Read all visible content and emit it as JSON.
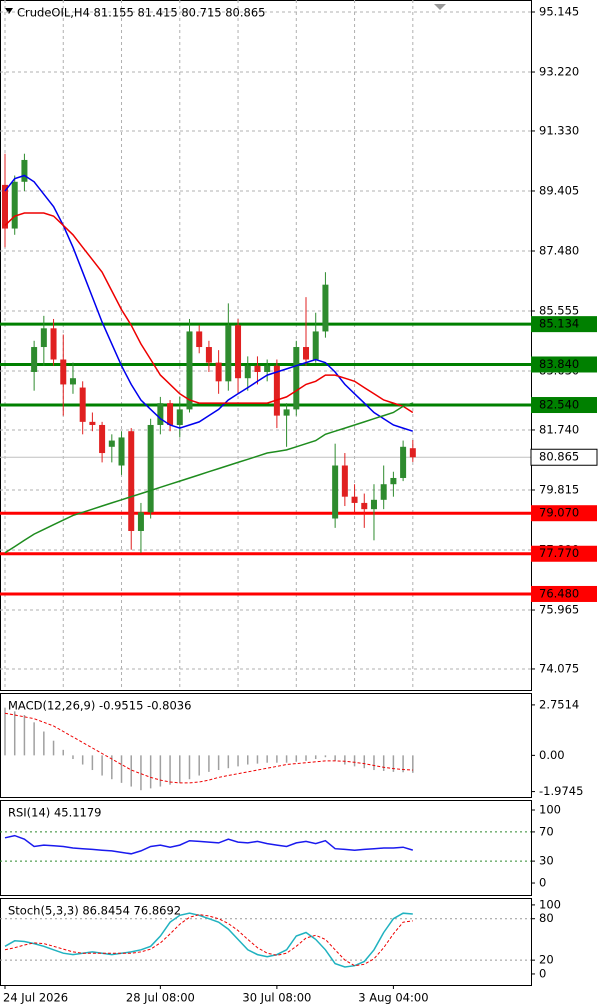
{
  "chart_data": [
    {
      "type": "candlestick",
      "title": "CrudeOIL,H4  81.155 81.415 80.715 80.865",
      "ylim": [
        73.4,
        95.53
      ],
      "yticks": [
        95.145,
        {
          "value": 93.22,
          "label": "93.220"
        },
        {
          "value": 91.33,
          "label": "91.330"
        },
        89.405,
        {
          "value": 87.48,
          "label": "87.480"
        },
        85.555,
        {
          "value": 83.63,
          "label": "83.630"
        },
        {
          "value": 81.74,
          "label": "81.740"
        },
        79.815,
        {
          "value": 77.89,
          "label": "77.890"
        },
        75.965,
        74.075
      ],
      "grid": true,
      "up_color": "#2e8b2e",
      "down_color": "#e02020",
      "open": [
        89.6,
        88.2,
        89.7,
        83.6,
        84.4,
        85.0,
        84.0,
        83.2,
        83.1,
        82.0,
        81.9,
        81.2,
        80.6,
        81.7,
        78.5,
        79.1,
        81.9,
        82.6,
        81.9,
        82.4,
        84.9,
        84.4,
        83.9,
        83.3,
        85.1,
        83.4,
        83.8,
        83.6,
        83.8,
        82.2,
        82.4,
        84.4,
        84.0,
        84.9,
        78.9,
        80.6,
        79.6,
        79.4,
        79.2,
        79.5,
        80.0,
        80.2,
        81.155
      ],
      "high": [
        90.6,
        89.9,
        90.6,
        84.6,
        85.4,
        85.3,
        84.8,
        83.9,
        83.3,
        82.3,
        82.0,
        81.6,
        81.7,
        81.8,
        79.4,
        82.1,
        82.8,
        82.7,
        82.8,
        85.3,
        85.1,
        84.6,
        84.3,
        85.8,
        85.3,
        84.1,
        84.1,
        84.0,
        84.0,
        82.6,
        84.6,
        86.0,
        85.5,
        86.8,
        81.3,
        81.0,
        80.0,
        79.7,
        80.0,
        80.6,
        80.4,
        81.4,
        81.415
      ],
      "low": [
        87.6,
        88.0,
        89.4,
        83.0,
        83.8,
        83.8,
        82.2,
        82.9,
        81.6,
        81.7,
        80.7,
        80.7,
        80.3,
        77.9,
        77.8,
        78.9,
        81.6,
        81.7,
        81.5,
        82.3,
        84.2,
        83.6,
        82.9,
        83.0,
        82.9,
        83.0,
        83.2,
        83.3,
        81.8,
        81.2,
        82.2,
        83.8,
        83.9,
        84.7,
        78.6,
        79.3,
        79.1,
        78.6,
        78.2,
        79.2,
        79.6,
        80.1,
        80.715
      ],
      "close": [
        88.2,
        89.7,
        90.4,
        84.4,
        85.0,
        84.0,
        83.2,
        83.4,
        82.0,
        81.9,
        81.0,
        81.4,
        81.5,
        78.5,
        79.1,
        81.9,
        82.6,
        81.9,
        82.4,
        84.9,
        84.4,
        83.9,
        83.3,
        85.1,
        83.4,
        83.8,
        83.6,
        83.8,
        82.2,
        82.4,
        84.4,
        84.0,
        84.9,
        86.4,
        80.6,
        79.6,
        79.4,
        79.2,
        79.5,
        80.0,
        80.2,
        81.2,
        80.865
      ],
      "series": [
        {
          "color": "#0000ee",
          "values": [
            89.4,
            89.8,
            89.9,
            89.7,
            89.3,
            88.9,
            88.3,
            87.6,
            86.8,
            86.0,
            85.2,
            84.5,
            83.8,
            83.2,
            82.7,
            82.4,
            82.1,
            81.9,
            81.8,
            81.9,
            82.0,
            82.2,
            82.4,
            82.7,
            82.9,
            83.1,
            83.3,
            83.5,
            83.6,
            83.7,
            83.8,
            83.9,
            84.0,
            83.9,
            83.6,
            83.2,
            82.9,
            82.6,
            82.3,
            82.1,
            81.9,
            81.8,
            81.7
          ]
        },
        {
          "color": "#ee0000",
          "values": [
            88.3,
            88.6,
            88.7,
            88.7,
            88.7,
            88.6,
            88.3,
            88.0,
            87.6,
            87.2,
            86.8,
            86.2,
            85.6,
            85.1,
            84.5,
            84.0,
            83.5,
            83.2,
            82.9,
            82.7,
            82.6,
            82.6,
            82.6,
            82.6,
            82.6,
            82.6,
            82.6,
            82.6,
            82.7,
            82.8,
            83.0,
            83.2,
            83.3,
            83.5,
            83.5,
            83.4,
            83.3,
            83.1,
            82.9,
            82.7,
            82.6,
            82.5,
            82.3
          ]
        },
        {
          "color": "#1e8c1e",
          "values": [
            77.8,
            78.0,
            78.2,
            78.4,
            78.55,
            78.7,
            78.85,
            79.0,
            79.1,
            79.2,
            79.3,
            79.4,
            79.5,
            79.6,
            79.7,
            79.8,
            79.9,
            80.0,
            80.1,
            80.2,
            80.3,
            80.4,
            80.5,
            80.6,
            80.7,
            80.8,
            80.9,
            81.0,
            81.05,
            81.1,
            81.2,
            81.3,
            81.4,
            81.6,
            81.7,
            81.8,
            81.9,
            82.0,
            82.1,
            82.2,
            82.3,
            82.5,
            82.6
          ]
        }
      ],
      "levels": [
        {
          "value": 85.134,
          "color": "#008000"
        },
        {
          "value": 83.84,
          "label": "83.840",
          "color": "#008000"
        },
        {
          "value": 82.54,
          "label": "82.540",
          "color": "#008000"
        },
        {
          "value": 79.07,
          "label": "79.070",
          "color": "#ff0000"
        },
        {
          "value": 77.77,
          "label": "77.770",
          "color": "#ff0000"
        },
        {
          "value": 76.48,
          "label": "76.480",
          "color": "#ff0000"
        }
      ],
      "level_labels": true,
      "last_price_line": true
    },
    {
      "type": "line",
      "title": "MACD(12,26,9) -0.9515 -0.8036",
      "ylim": [
        -2.27,
        3.4
      ],
      "yticks": [
        2.7514,
        {
          "value": 0,
          "label": "0.00"
        },
        -1.9745
      ],
      "grid": false,
      "series": [
        {
          "kind": "bar",
          "color": "#a0a0a0",
          "values": [
            2.6,
            2.4,
            2.2,
            1.8,
            1.3,
            0.8,
            0.3,
            -0.2,
            -0.5,
            -0.8,
            -1.1,
            -1.3,
            -1.5,
            -1.7,
            -1.9,
            -1.8,
            -1.7,
            -1.6,
            -1.5,
            -1.3,
            -1.1,
            -0.9,
            -0.8,
            -0.7,
            -0.6,
            -0.5,
            -0.45,
            -0.4,
            -0.4,
            -0.4,
            -0.35,
            -0.3,
            -0.2,
            -0.1,
            -0.3,
            -0.5,
            -0.6,
            -0.7,
            -0.8,
            -0.85,
            -0.9,
            -0.92,
            -0.9515
          ]
        },
        {
          "color": "#ee0000",
          "dash": true,
          "values": [
            2.3,
            2.2,
            2.1,
            2.0,
            1.8,
            1.6,
            1.3,
            1.0,
            0.7,
            0.4,
            0.1,
            -0.2,
            -0.5,
            -0.8,
            -1.0,
            -1.2,
            -1.35,
            -1.45,
            -1.5,
            -1.5,
            -1.45,
            -1.35,
            -1.2,
            -1.1,
            -1.0,
            -0.9,
            -0.8,
            -0.7,
            -0.6,
            -0.5,
            -0.45,
            -0.4,
            -0.35,
            -0.3,
            -0.3,
            -0.32,
            -0.38,
            -0.45,
            -0.55,
            -0.65,
            -0.72,
            -0.77,
            -0.8036
          ]
        }
      ]
    },
    {
      "type": "line",
      "title": "RSI(14) 45.1179",
      "ylim": [
        -16.4,
        113.7
      ],
      "yticks": [
        100,
        70,
        30,
        0
      ],
      "grid": false,
      "levels": [
        {
          "value": 70,
          "color": "#2e8b2e",
          "dash": true
        },
        {
          "value": 30,
          "color": "#2e8b2e",
          "dash": true
        }
      ],
      "series": [
        {
          "color": "#1a1aee",
          "values": [
            62,
            65,
            60,
            50,
            52,
            51,
            50,
            48,
            47,
            46,
            45,
            44,
            42,
            40,
            44,
            50,
            52,
            49,
            52,
            58,
            57,
            56,
            55,
            60,
            56,
            55,
            57,
            54,
            52,
            50,
            55,
            57,
            54,
            58,
            47,
            46,
            45,
            46,
            47,
            48,
            48,
            49,
            45.1179
          ]
        }
      ]
    },
    {
      "type": "line",
      "title": "Stoch(5,3,3) 86.8454 76.8692",
      "ylim": [
        -16,
        110
      ],
      "yticks": [
        100,
        80,
        20,
        0
      ],
      "grid": false,
      "levels": [
        {
          "value": 80,
          "color": "#999999",
          "dash": true
        },
        {
          "value": 20,
          "color": "#999999",
          "dash": true
        }
      ],
      "series": [
        {
          "color": "#20b2c0",
          "values": [
            40,
            48,
            47,
            44,
            40,
            35,
            30,
            28,
            30,
            32,
            30,
            28,
            30,
            32,
            35,
            40,
            55,
            75,
            85,
            88,
            85,
            80,
            75,
            65,
            50,
            35,
            28,
            25,
            28,
            35,
            55,
            60,
            50,
            35,
            15,
            10,
            12,
            18,
            35,
            60,
            80,
            88,
            86.8454
          ]
        },
        {
          "color": "#ee0000",
          "dash": true,
          "values": [
            35,
            38,
            42,
            45,
            44,
            40,
            36,
            32,
            30,
            30,
            30,
            30,
            30,
            30,
            32,
            36,
            45,
            58,
            72,
            82,
            86,
            84,
            80,
            73,
            63,
            50,
            38,
            30,
            27,
            30,
            40,
            52,
            56,
            50,
            35,
            20,
            12,
            14,
            22,
            38,
            58,
            75,
            76.8692
          ]
        }
      ],
      "categories": [
        "24 Jul 2026",
        null,
        null,
        null,
        null,
        null,
        null,
        null,
        null,
        null,
        null,
        null,
        null,
        null,
        null,
        null,
        "28 Jul 08:00",
        null,
        null,
        null,
        null,
        null,
        null,
        null,
        null,
        null,
        null,
        null,
        "30 Jul 08:00",
        null,
        null,
        null,
        null,
        null,
        null,
        null,
        null,
        null,
        null,
        null,
        "3 Aug 04:00",
        null,
        null
      ]
    }
  ]
}
